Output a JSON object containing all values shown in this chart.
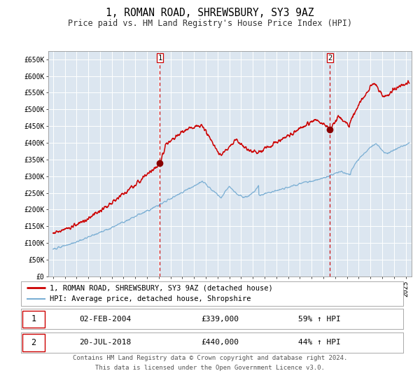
{
  "title": "1, ROMAN ROAD, SHREWSBURY, SY3 9AZ",
  "subtitle": "Price paid vs. HM Land Registry's House Price Index (HPI)",
  "title_fontsize": 10.5,
  "subtitle_fontsize": 8.5,
  "bg_color": "#dce6f0",
  "fig_bg_color": "#ffffff",
  "grid_color": "#ffffff",
  "ylim": [
    0,
    675000
  ],
  "xlim_start": 1994.6,
  "xlim_end": 2025.5,
  "yticks": [
    0,
    50000,
    100000,
    150000,
    200000,
    250000,
    300000,
    350000,
    400000,
    450000,
    500000,
    550000,
    600000,
    650000
  ],
  "ytick_labels": [
    "£0",
    "£50K",
    "£100K",
    "£150K",
    "£200K",
    "£250K",
    "£300K",
    "£350K",
    "£400K",
    "£450K",
    "£500K",
    "£550K",
    "£600K",
    "£650K"
  ],
  "xticks": [
    1995,
    1996,
    1997,
    1998,
    1999,
    2000,
    2001,
    2002,
    2003,
    2004,
    2005,
    2006,
    2007,
    2008,
    2009,
    2010,
    2011,
    2012,
    2013,
    2014,
    2015,
    2016,
    2017,
    2018,
    2019,
    2020,
    2021,
    2022,
    2023,
    2024,
    2025
  ],
  "red_line_color": "#cc0000",
  "blue_line_color": "#7bafd4",
  "marker_color": "#880000",
  "vline_color": "#cc0000",
  "sale1_x": 2004.09,
  "sale1_y": 339000,
  "sale1_label": "1",
  "sale2_x": 2018.55,
  "sale2_y": 440000,
  "sale2_label": "2",
  "legend_entry1": "1, ROMAN ROAD, SHREWSBURY, SY3 9AZ (detached house)",
  "legend_entry2": "HPI: Average price, detached house, Shropshire",
  "table_row1": [
    "1",
    "02-FEB-2004",
    "£339,000",
    "59% ↑ HPI"
  ],
  "table_row2": [
    "2",
    "20-JUL-2018",
    "£440,000",
    "44% ↑ HPI"
  ],
  "footnote1": "Contains HM Land Registry data © Crown copyright and database right 2024.",
  "footnote2": "This data is licensed under the Open Government Licence v3.0.",
  "footnote_fontsize": 6.5,
  "tick_fontsize": 7,
  "legend_fontsize": 7.5
}
